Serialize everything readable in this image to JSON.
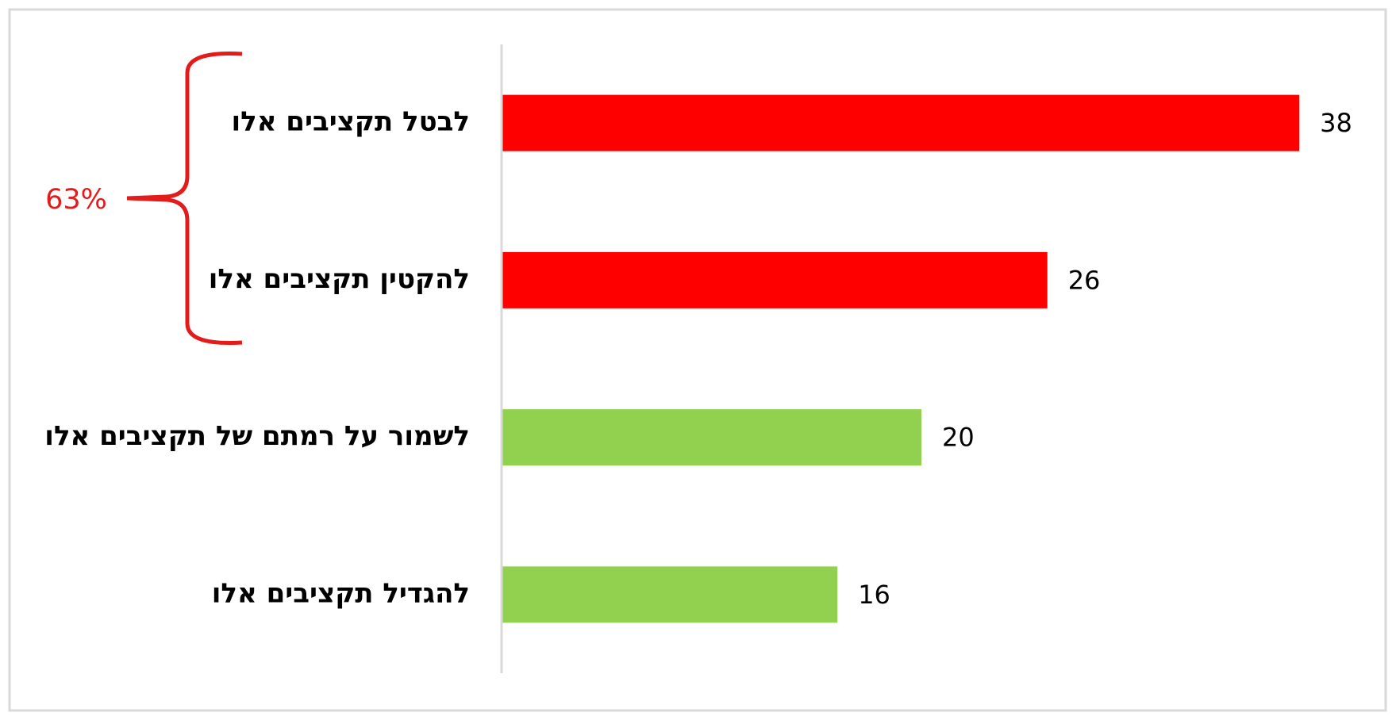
{
  "chart_data": {
    "type": "hbar",
    "categories": [
      "לבטל תקציבים אלו",
      "להקטין תקציבים אלו",
      "לשמור על רמתם של תקציבים אלו",
      "להגדיל תקציבים אלו"
    ],
    "values": [
      38,
      26,
      20,
      16
    ],
    "colors": [
      "#ff0000",
      "#ff0000",
      "#92d050",
      "#92d050"
    ],
    "xlim": [
      0,
      40
    ],
    "annotation": "63%",
    "annotation_color": "#e31b1b"
  }
}
